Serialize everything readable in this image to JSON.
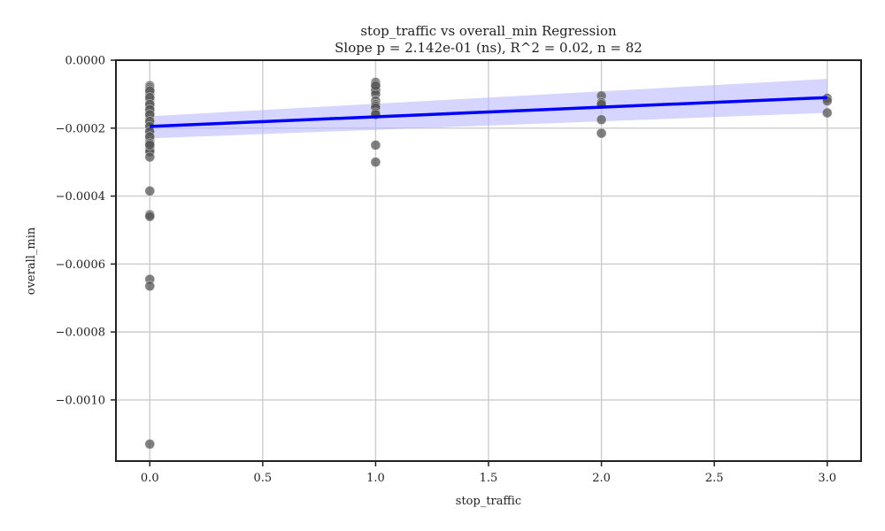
{
  "chart_data": {
    "type": "scatter",
    "title": "stop_traffic vs overall_min Regression",
    "subtitle": "Slope p = 2.142e-01 (ns), R^2 = 0.02, n = 82",
    "xlabel": "stop_traffic",
    "ylabel": "overall_min",
    "xlim": [
      -0.15,
      3.15
    ],
    "ylim": [
      -0.00118,
      0.0
    ],
    "grid": true,
    "legend": "none",
    "x_ticks": [
      {
        "value": 0.0,
        "label": "0.0"
      },
      {
        "value": 0.5,
        "label": "0.5"
      },
      {
        "value": 1.0,
        "label": "1.0"
      },
      {
        "value": 1.5,
        "label": "1.5"
      },
      {
        "value": 2.0,
        "label": "2.0"
      },
      {
        "value": 2.5,
        "label": "2.5"
      },
      {
        "value": 3.0,
        "label": "3.0"
      }
    ],
    "y_ticks": [
      {
        "value": 0.0,
        "label": "0.0000"
      },
      {
        "value": -0.0002,
        "label": "−0.0002"
      },
      {
        "value": -0.0004,
        "label": "−0.0004"
      },
      {
        "value": -0.0006,
        "label": "−0.0006"
      },
      {
        "value": -0.0008,
        "label": "−0.0008"
      },
      {
        "value": -0.001,
        "label": "−0.0010"
      }
    ],
    "points": {
      "x": [
        0,
        0,
        0,
        0,
        0,
        0,
        0,
        0,
        0,
        0,
        0,
        0,
        0,
        0,
        0,
        0,
        0,
        0,
        0,
        0,
        0,
        0,
        0,
        0,
        0,
        0,
        0,
        0,
        0,
        0,
        0,
        0,
        0,
        0,
        0,
        0,
        0,
        0,
        0,
        0,
        0,
        0,
        0,
        0,
        0,
        0,
        0,
        0,
        0,
        0,
        0,
        0,
        0,
        0,
        0,
        0,
        0,
        0,
        1,
        1,
        1,
        1,
        1,
        1,
        1,
        1,
        1,
        1,
        1,
        1,
        1,
        1,
        1,
        1,
        2,
        2,
        2,
        2,
        2,
        3,
        3,
        3
      ],
      "y": [
        -7.5e-05,
        -8e-05,
        -8.5e-05,
        -9e-05,
        -9.5e-05,
        -0.0001,
        -0.000105,
        -0.00011,
        -0.000115,
        -0.00012,
        -0.000125,
        -0.00013,
        -0.000135,
        -0.00014,
        -0.000145,
        -0.00015,
        -0.000155,
        -0.00016,
        -0.000165,
        -0.00017,
        -0.000175,
        -0.00018,
        -0.000185,
        -0.00019,
        -0.000195,
        -0.0002,
        -0.000205,
        -0.00021,
        -0.000215,
        -0.00022,
        -0.000225,
        -0.00023,
        -0.000235,
        -0.00024,
        -0.000245,
        -0.00025,
        -0.000255,
        -0.00026,
        -0.000265,
        -0.00027,
        -0.000285,
        -0.000385,
        -0.000455,
        -0.00046,
        -0.000645,
        -0.000665,
        -0.00113,
        -9e-05,
        -0.00011,
        -0.00013,
        -0.000145,
        -0.00016,
        -0.00018,
        -0.000195,
        -0.00021,
        -0.000225,
        -0.000245,
        -0.00025,
        -6.5e-05,
        -7e-05,
        -7.5e-05,
        -8e-05,
        -8.5e-05,
        -9e-05,
        -0.0001,
        -0.00012,
        -0.00013,
        -0.000135,
        -0.00014,
        -0.000155,
        -0.00016,
        -0.00025,
        -0.0003,
        -7.5e-05,
        -0.000105,
        -0.000125,
        -0.00013,
        -0.000175,
        -0.000215,
        -0.000112,
        -0.00012,
        -0.000155
      ]
    },
    "regression": {
      "x": [
        0,
        3
      ],
      "y": [
        -0.000195,
        -0.00011
      ],
      "ci_lower": [
        -0.00023,
        -0.000155
      ],
      "ci_upper": [
        -0.000165,
        -5.5e-05
      ]
    },
    "colors": {
      "points": "#555555",
      "line": "#0000ff",
      "band": "#b3b3ff"
    }
  }
}
